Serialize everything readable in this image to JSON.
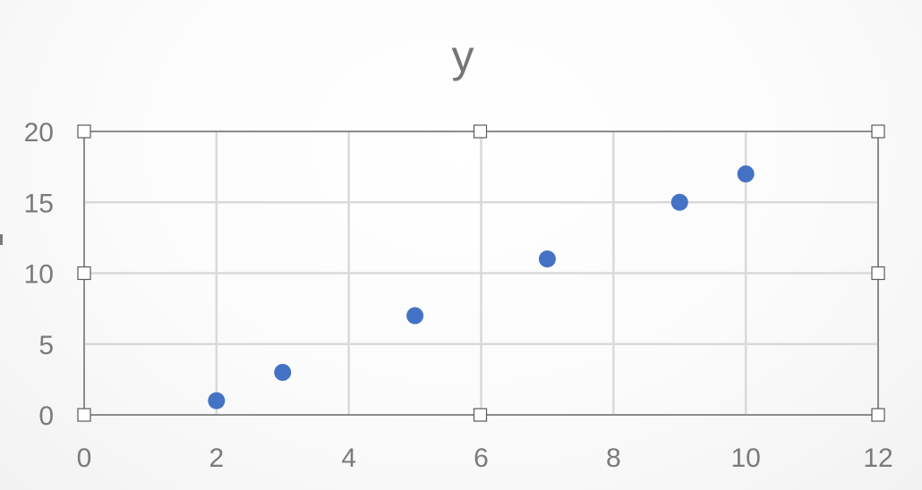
{
  "chart_data": {
    "type": "scatter",
    "title": "y",
    "xlabel": "",
    "ylabel": "",
    "xlim": [
      0,
      12
    ],
    "ylim": [
      0,
      20
    ],
    "xticks": [
      0,
      2,
      4,
      6,
      8,
      10,
      12
    ],
    "yticks": [
      0,
      5,
      10,
      15,
      20
    ],
    "grid": true,
    "legend": "none",
    "series": [
      {
        "color": "#4472c4",
        "points": [
          {
            "x": 2,
            "y": 1
          },
          {
            "x": 3,
            "y": 3
          },
          {
            "x": 5,
            "y": 7
          },
          {
            "x": 7,
            "y": 11
          },
          {
            "x": 9,
            "y": 15
          },
          {
            "x": 10,
            "y": 17
          }
        ]
      }
    ]
  }
}
